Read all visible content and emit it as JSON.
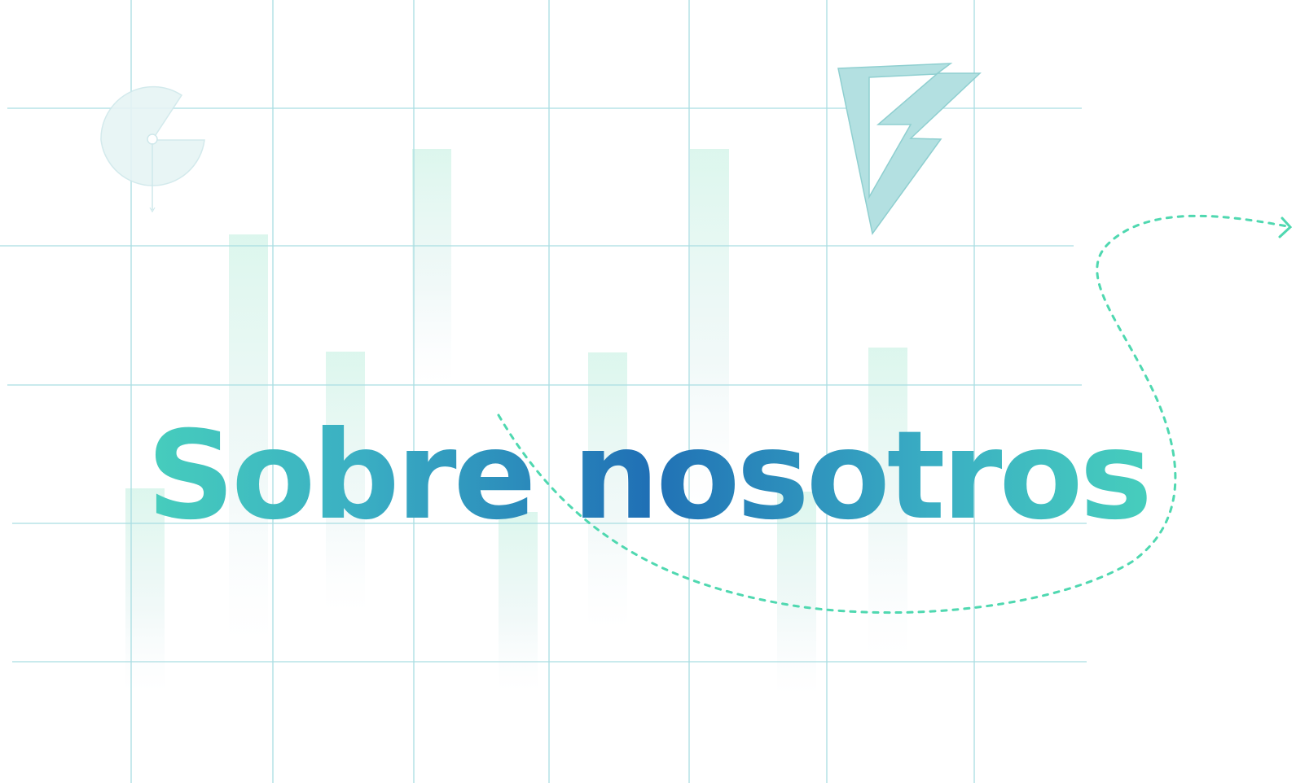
{
  "page": {
    "title": "Sobre nosotros"
  },
  "colors": {
    "grid_line": "#a9dde2",
    "bar_fill": "#d6f5ea",
    "gradient_start": "#4fe3b8",
    "gradient_mid": "#2070b5",
    "dashed_path": "#4fd8b0",
    "bolt_fill": "#9fd8d8",
    "pie_fill": "#e6f4f5"
  },
  "icons": {
    "bolt": "lightning-bolt-icon",
    "pie": "pie-chart-icon",
    "arrow": "dashed-arrow-icon"
  }
}
